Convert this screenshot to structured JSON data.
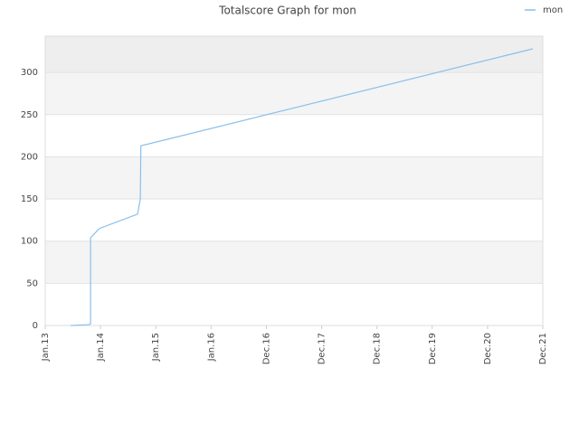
{
  "chart_data": {
    "type": "line",
    "title": "Totalscore Graph for mon",
    "x": [
      0.46,
      0.79,
      0.82,
      0.82,
      0.98,
      1.67,
      1.72,
      1.73,
      8.82
    ],
    "series": [
      {
        "name": "mon",
        "color": "#88c0ec",
        "values": [
          0,
          1,
          2,
          104,
          115,
          132,
          150,
          213,
          328
        ]
      }
    ],
    "xlim": [
      0,
      9
    ],
    "xticks": [
      {
        "value": 0,
        "label": "Jan.13"
      },
      {
        "value": 1,
        "label": "Jan.14"
      },
      {
        "value": 2,
        "label": "Jan.15"
      },
      {
        "value": 3,
        "label": "Jan.16"
      },
      {
        "value": 4,
        "label": "Dec.16"
      },
      {
        "value": 5,
        "label": "Dec.17"
      },
      {
        "value": 6,
        "label": "Dec.18"
      },
      {
        "value": 7,
        "label": "Dec.19"
      },
      {
        "value": 8,
        "label": "Dec.20"
      },
      {
        "value": 9,
        "label": "Dec.21"
      }
    ],
    "ylim": [
      0,
      343
    ],
    "yticks": [
      0,
      50,
      100,
      150,
      200,
      250,
      300
    ],
    "grid": true,
    "legend": "top-right"
  }
}
